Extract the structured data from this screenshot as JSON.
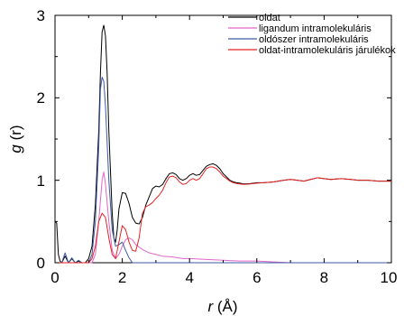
{
  "chart_data": {
    "type": "line",
    "xlabel": {
      "var": "r",
      "unit": " (Å)"
    },
    "ylabel": {
      "var": "g",
      "unit": " (r)"
    },
    "xlim": [
      0,
      10
    ],
    "ylim": [
      0,
      3
    ],
    "x_ticks": [
      "0",
      "2",
      "4",
      "6",
      "8",
      "10"
    ],
    "y_ticks": [
      "0",
      "1",
      "2",
      "3"
    ],
    "legend_position": "top-right",
    "grid": false,
    "series": [
      {
        "name": "oldat",
        "color": "#000000",
        "points": [
          [
            0,
            0.5
          ],
          [
            0.05,
            0.48
          ],
          [
            0.1,
            0.1
          ],
          [
            0.15,
            0.02
          ],
          [
            0.2,
            0.0
          ],
          [
            0.3,
            0.08
          ],
          [
            0.4,
            0.0
          ],
          [
            0.5,
            0.05
          ],
          [
            0.6,
            0.0
          ],
          [
            0.7,
            0.02
          ],
          [
            0.8,
            0.0
          ],
          [
            0.9,
            0.0
          ],
          [
            1.0,
            0.05
          ],
          [
            1.1,
            0.2
          ],
          [
            1.2,
            0.7
          ],
          [
            1.3,
            1.6
          ],
          [
            1.35,
            2.3
          ],
          [
            1.4,
            2.8
          ],
          [
            1.45,
            2.88
          ],
          [
            1.5,
            2.75
          ],
          [
            1.55,
            2.3
          ],
          [
            1.6,
            1.6
          ],
          [
            1.7,
            0.6
          ],
          [
            1.75,
            0.3
          ],
          [
            1.8,
            0.25
          ],
          [
            1.85,
            0.4
          ],
          [
            1.9,
            0.65
          ],
          [
            2.0,
            0.85
          ],
          [
            2.1,
            0.84
          ],
          [
            2.2,
            0.72
          ],
          [
            2.3,
            0.55
          ],
          [
            2.4,
            0.48
          ],
          [
            2.5,
            0.47
          ],
          [
            2.6,
            0.55
          ],
          [
            2.7,
            0.7
          ],
          [
            2.8,
            0.8
          ],
          [
            2.9,
            0.9
          ],
          [
            3.0,
            0.93
          ],
          [
            3.1,
            0.92
          ],
          [
            3.2,
            0.95
          ],
          [
            3.3,
            1.02
          ],
          [
            3.4,
            1.08
          ],
          [
            3.5,
            1.09
          ],
          [
            3.6,
            1.07
          ],
          [
            3.7,
            1.02
          ],
          [
            3.8,
            1.0
          ],
          [
            3.9,
            1.02
          ],
          [
            4.0,
            1.06
          ],
          [
            4.1,
            1.08
          ],
          [
            4.2,
            1.06
          ],
          [
            4.3,
            1.07
          ],
          [
            4.4,
            1.12
          ],
          [
            4.5,
            1.17
          ],
          [
            4.6,
            1.19
          ],
          [
            4.7,
            1.2
          ],
          [
            4.8,
            1.18
          ],
          [
            4.9,
            1.14
          ],
          [
            5.0,
            1.08
          ],
          [
            5.1,
            1.04
          ],
          [
            5.2,
            1.0
          ],
          [
            5.3,
            0.98
          ],
          [
            5.4,
            0.97
          ],
          [
            5.5,
            0.965
          ],
          [
            5.6,
            0.955
          ],
          [
            5.8,
            0.96
          ],
          [
            6.0,
            0.97
          ],
          [
            6.2,
            0.97
          ],
          [
            6.5,
            0.98
          ],
          [
            6.8,
            1.0
          ],
          [
            7.0,
            1.01
          ],
          [
            7.2,
            1.0
          ],
          [
            7.4,
            0.99
          ],
          [
            7.6,
            1.01
          ],
          [
            7.8,
            1.03
          ],
          [
            8.0,
            1.02
          ],
          [
            8.2,
            1.01
          ],
          [
            8.5,
            1.02
          ],
          [
            8.8,
            1.01
          ],
          [
            9.0,
            1.0
          ],
          [
            9.3,
            1.0
          ],
          [
            9.6,
            0.99
          ],
          [
            10.0,
            0.99
          ]
        ]
      },
      {
        "name": "ligandum intramolekuláris",
        "color": "#e066c8",
        "points": [
          [
            0,
            0
          ],
          [
            1.1,
            0.0
          ],
          [
            1.2,
            0.1
          ],
          [
            1.3,
            0.5
          ],
          [
            1.4,
            1.0
          ],
          [
            1.45,
            1.1
          ],
          [
            1.5,
            0.95
          ],
          [
            1.6,
            0.5
          ],
          [
            1.7,
            0.15
          ],
          [
            1.8,
            0.05
          ],
          [
            1.9,
            0.1
          ],
          [
            2.0,
            0.2
          ],
          [
            2.1,
            0.28
          ],
          [
            2.2,
            0.3
          ],
          [
            2.3,
            0.28
          ],
          [
            2.4,
            0.22
          ],
          [
            2.6,
            0.16
          ],
          [
            2.8,
            0.12
          ],
          [
            3.0,
            0.1
          ],
          [
            3.2,
            0.08
          ],
          [
            3.5,
            0.07
          ],
          [
            3.8,
            0.05
          ],
          [
            4.0,
            0.05
          ],
          [
            4.5,
            0.04
          ],
          [
            5.0,
            0.03
          ],
          [
            5.5,
            0.02
          ],
          [
            6.0,
            0.02
          ],
          [
            6.5,
            0.01
          ],
          [
            7.0,
            0.0
          ]
        ]
      },
      {
        "name": "oldószer intramolekuláris",
        "color": "#3c5aa6",
        "points": [
          [
            0,
            0
          ],
          [
            0.2,
            0.0
          ],
          [
            0.3,
            0.12
          ],
          [
            0.4,
            0.0
          ],
          [
            0.5,
            0.06
          ],
          [
            0.6,
            0.0
          ],
          [
            0.7,
            0.03
          ],
          [
            0.8,
            0.0
          ],
          [
            1.0,
            0.0
          ],
          [
            1.1,
            0.1
          ],
          [
            1.2,
            0.5
          ],
          [
            1.3,
            1.4
          ],
          [
            1.35,
            2.1
          ],
          [
            1.4,
            2.25
          ],
          [
            1.45,
            2.2
          ],
          [
            1.5,
            1.9
          ],
          [
            1.6,
            1.0
          ],
          [
            1.7,
            0.4
          ],
          [
            1.8,
            0.2
          ],
          [
            1.9,
            0.22
          ],
          [
            2.0,
            0.25
          ],
          [
            2.1,
            0.15
          ],
          [
            2.2,
            0.06
          ],
          [
            2.3,
            0.0
          ],
          [
            10.0,
            0.0
          ]
        ]
      },
      {
        "name": "oldat-intramolekuláris járulékok",
        "color": "#e52222",
        "points": [
          [
            0,
            0
          ],
          [
            1.0,
            0.0
          ],
          [
            1.1,
            0.05
          ],
          [
            1.2,
            0.2
          ],
          [
            1.3,
            0.5
          ],
          [
            1.4,
            0.6
          ],
          [
            1.5,
            0.55
          ],
          [
            1.6,
            0.3
          ],
          [
            1.7,
            0.1
          ],
          [
            1.8,
            0.05
          ],
          [
            1.9,
            0.25
          ],
          [
            2.0,
            0.45
          ],
          [
            2.1,
            0.4
          ],
          [
            2.2,
            0.25
          ],
          [
            2.3,
            0.15
          ],
          [
            2.4,
            0.14
          ],
          [
            2.5,
            0.3
          ],
          [
            2.6,
            0.6
          ],
          [
            2.7,
            0.68
          ],
          [
            2.8,
            0.7
          ],
          [
            2.9,
            0.73
          ],
          [
            3.0,
            0.78
          ],
          [
            3.1,
            0.82
          ],
          [
            3.2,
            0.88
          ],
          [
            3.3,
            0.97
          ],
          [
            3.4,
            1.04
          ],
          [
            3.5,
            1.05
          ],
          [
            3.6,
            1.03
          ],
          [
            3.7,
            0.98
          ],
          [
            3.8,
            0.95
          ],
          [
            3.9,
            0.96
          ],
          [
            4.0,
            1.0
          ],
          [
            4.1,
            1.02
          ],
          [
            4.2,
            1.0
          ],
          [
            4.3,
            1.02
          ],
          [
            4.4,
            1.08
          ],
          [
            4.5,
            1.14
          ],
          [
            4.6,
            1.16
          ],
          [
            4.7,
            1.16
          ],
          [
            4.8,
            1.14
          ],
          [
            4.9,
            1.1
          ],
          [
            5.0,
            1.05
          ],
          [
            5.1,
            1.02
          ],
          [
            5.2,
            0.99
          ],
          [
            5.3,
            0.97
          ],
          [
            5.4,
            0.96
          ],
          [
            5.5,
            0.955
          ],
          [
            5.6,
            0.95
          ],
          [
            5.8,
            0.955
          ],
          [
            6.0,
            0.965
          ],
          [
            6.2,
            0.97
          ],
          [
            6.5,
            0.98
          ],
          [
            6.8,
            1.0
          ],
          [
            7.0,
            1.01
          ],
          [
            7.2,
            1.0
          ],
          [
            7.4,
            0.99
          ],
          [
            7.6,
            1.01
          ],
          [
            7.8,
            1.03
          ],
          [
            8.0,
            1.02
          ],
          [
            8.2,
            1.01
          ],
          [
            8.5,
            1.02
          ],
          [
            8.8,
            1.01
          ],
          [
            9.0,
            1.0
          ],
          [
            9.3,
            1.0
          ],
          [
            9.6,
            0.99
          ],
          [
            10.0,
            0.99
          ]
        ]
      }
    ]
  }
}
